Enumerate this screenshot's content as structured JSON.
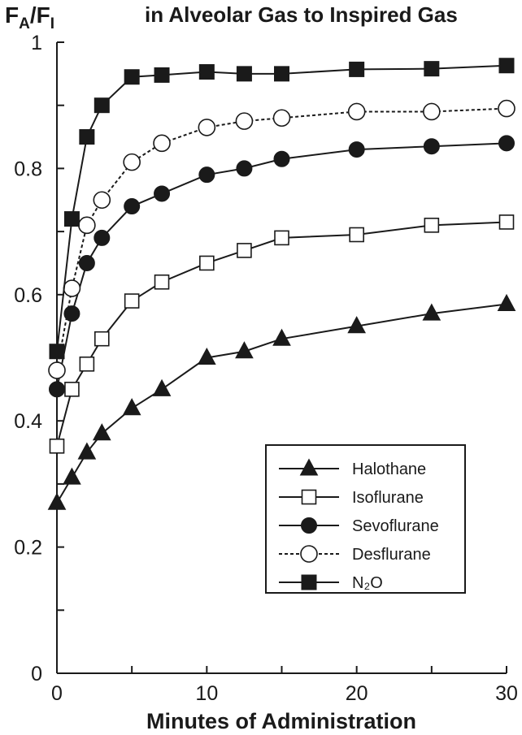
{
  "chart_data": {
    "type": "line",
    "title": "in Alveolar Gas to Inspired Gas",
    "ylabel": {
      "main": "F",
      "sub_a": "A",
      "sep": "/F",
      "sub_i": "I"
    },
    "xlabel": "Minutes of Administration",
    "xlim": [
      0,
      30
    ],
    "ylim": [
      0,
      1
    ],
    "x_ticks": [
      0,
      10,
      20,
      30
    ],
    "x_tick_labels": [
      "0",
      "10",
      "20",
      "30"
    ],
    "y_ticks": [
      0,
      0.2,
      0.4,
      0.6,
      0.8,
      1
    ],
    "y_tick_labels": [
      "0",
      "0.2",
      "0.4",
      "0.6",
      "0.8",
      "1"
    ],
    "grid": false,
    "legend_position": "bottom-right",
    "series": [
      {
        "name": "Halothane",
        "marker": "filled-triangle",
        "line": "solid",
        "x": [
          0,
          1,
          2,
          3,
          5,
          7,
          10,
          12.5,
          15,
          20,
          25,
          30
        ],
        "y": [
          0.27,
          0.31,
          0.35,
          0.38,
          0.42,
          0.45,
          0.5,
          0.51,
          0.53,
          0.55,
          0.57,
          0.585
        ]
      },
      {
        "name": "Isoflurane",
        "marker": "open-square",
        "line": "solid",
        "x": [
          0,
          1,
          2,
          3,
          5,
          7,
          10,
          12.5,
          15,
          20,
          25,
          30
        ],
        "y": [
          0.36,
          0.45,
          0.49,
          0.53,
          0.59,
          0.62,
          0.65,
          0.67,
          0.69,
          0.695,
          0.71,
          0.715
        ]
      },
      {
        "name": "Sevoflurane",
        "marker": "filled-circle",
        "line": "solid",
        "x": [
          0,
          1,
          2,
          3,
          5,
          7,
          10,
          12.5,
          15,
          20,
          25,
          30
        ],
        "y": [
          0.45,
          0.57,
          0.65,
          0.69,
          0.74,
          0.76,
          0.79,
          0.8,
          0.815,
          0.83,
          0.835,
          0.84
        ]
      },
      {
        "name": "Desflurane",
        "marker": "open-circle",
        "line": "dashed",
        "x": [
          0,
          1,
          2,
          3,
          5,
          7,
          10,
          12.5,
          15,
          20,
          25,
          30
        ],
        "y": [
          0.48,
          0.61,
          0.71,
          0.75,
          0.81,
          0.84,
          0.865,
          0.875,
          0.88,
          0.89,
          0.89,
          0.895
        ]
      },
      {
        "name": "N₂O",
        "marker": "filled-square",
        "line": "solid",
        "x": [
          0,
          1,
          2,
          3,
          5,
          7,
          10,
          12.5,
          15,
          20,
          25,
          30
        ],
        "y": [
          0.51,
          0.72,
          0.85,
          0.9,
          0.945,
          0.948,
          0.953,
          0.95,
          0.95,
          0.957,
          0.958,
          0.963
        ]
      }
    ],
    "colors": {
      "ink": "#1a1a1a",
      "background": "#ffffff"
    }
  }
}
